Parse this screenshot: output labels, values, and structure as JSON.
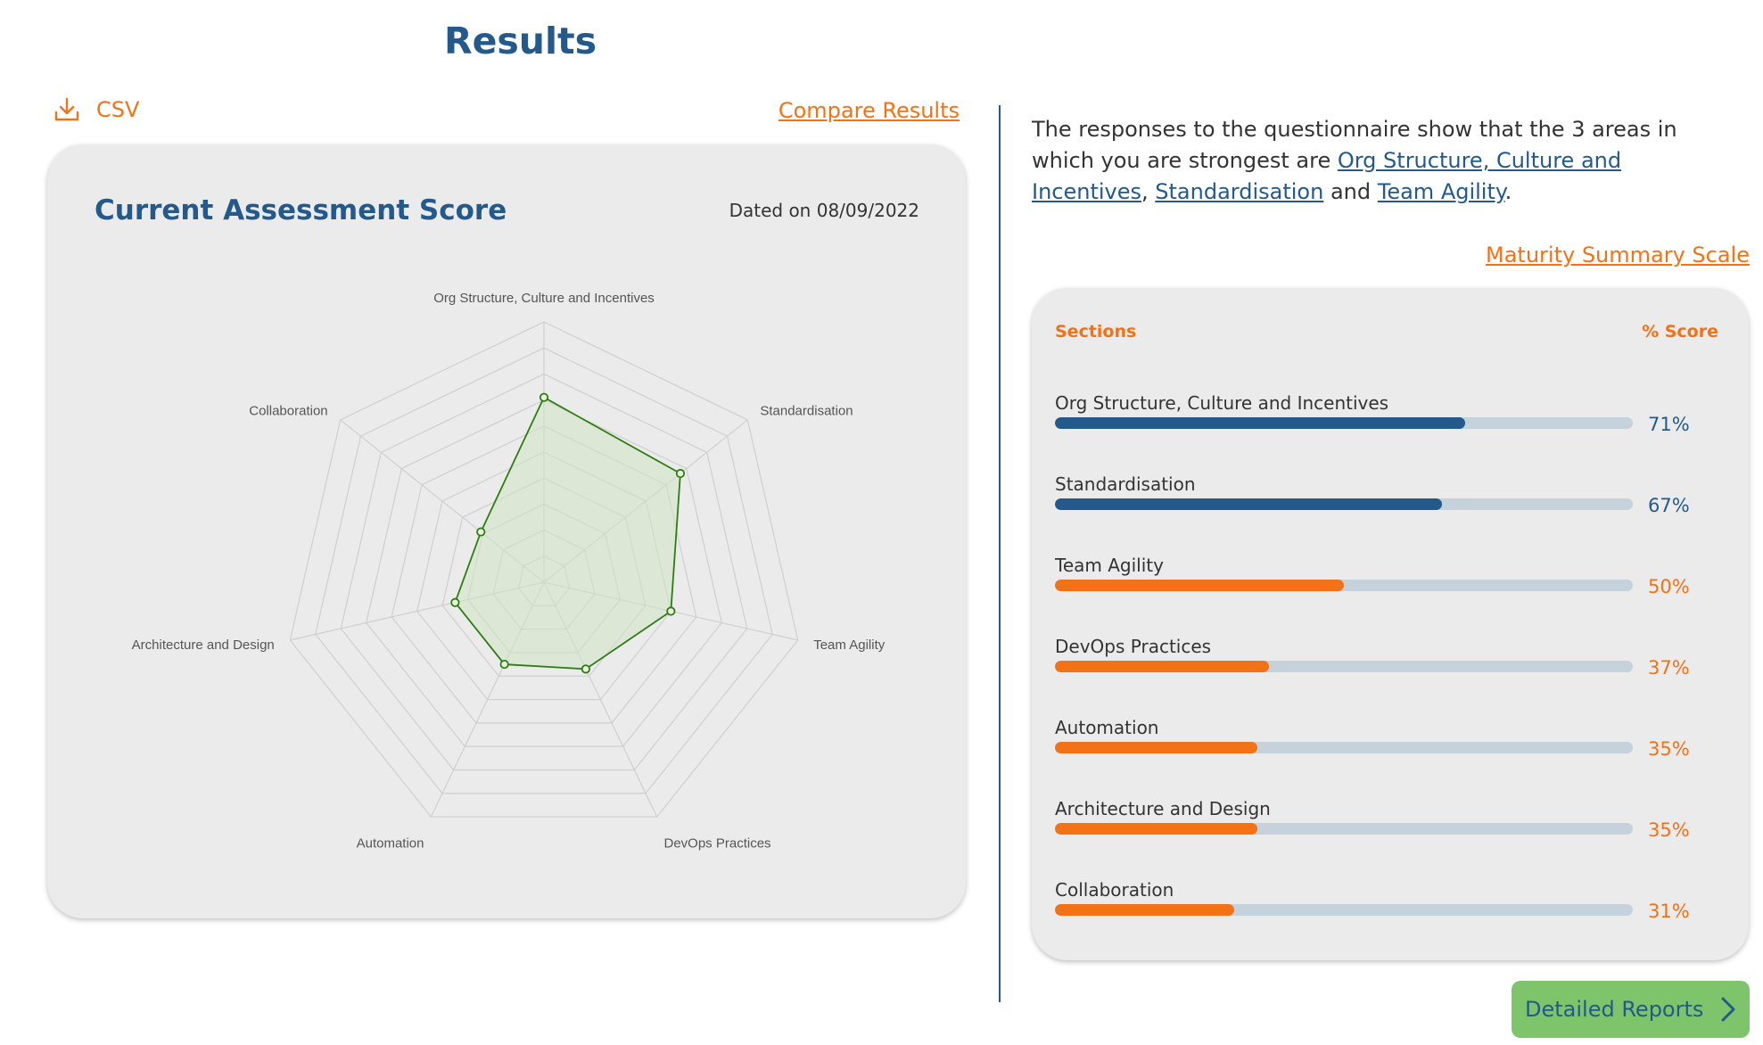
{
  "header": {
    "title": "Results"
  },
  "toolbar": {
    "csv_label": "CSV",
    "compare_label": "Compare Results"
  },
  "assessment": {
    "title": "Current Assessment Score",
    "dated": "Dated on 08/09/2022"
  },
  "chart_data": {
    "type": "radar",
    "axes": [
      "Org Structure, Culture and Incentives",
      "Standardisation",
      "Team Agility",
      "DevOps Practices",
      "Automation",
      "Architecture and Design",
      "Collaboration"
    ],
    "values": [
      71,
      67,
      50,
      37,
      35,
      35,
      31
    ],
    "range": [
      0,
      100
    ],
    "grid_levels": 10,
    "colors": {
      "line": "#2e7d12",
      "fill": "#cfe3c4",
      "grid": "#cfcfcf"
    }
  },
  "summary": {
    "intro_before": "The responses to the questionnaire show that the 3 areas in which you are strongest are ",
    "link1": "Org Structure, Culture and Incentives",
    "sep1": ", ",
    "link2": "Standardisation",
    "sep2": " and ",
    "link3": "Team Agility",
    "end": ".",
    "maturity_link": "Maturity Summary Scale"
  },
  "table": {
    "col_sections": "Sections",
    "col_score": "% Score",
    "rows": [
      {
        "label": "Org Structure, Culture and Incentives",
        "score": "71%",
        "value": 71,
        "color": "#235a8b"
      },
      {
        "label": "Standardisation",
        "score": "67%",
        "value": 67,
        "color": "#235a8b"
      },
      {
        "label": "Team Agility",
        "score": "50%",
        "value": 50,
        "color": "#f47216"
      },
      {
        "label": "DevOps Practices",
        "score": "37%",
        "value": 37,
        "color": "#f47216"
      },
      {
        "label": "Automation",
        "score": "35%",
        "value": 35,
        "color": "#f47216"
      },
      {
        "label": "Architecture and Design",
        "score": "35%",
        "value": 35,
        "color": "#f47216"
      },
      {
        "label": "Collaboration",
        "score": "31%",
        "value": 31,
        "color": "#f47216"
      }
    ]
  },
  "footer": {
    "detail_label": "Detailed Reports"
  },
  "colors": {
    "primary": "#235a8b",
    "accent": "#f47216",
    "button": "#7dc46b"
  }
}
